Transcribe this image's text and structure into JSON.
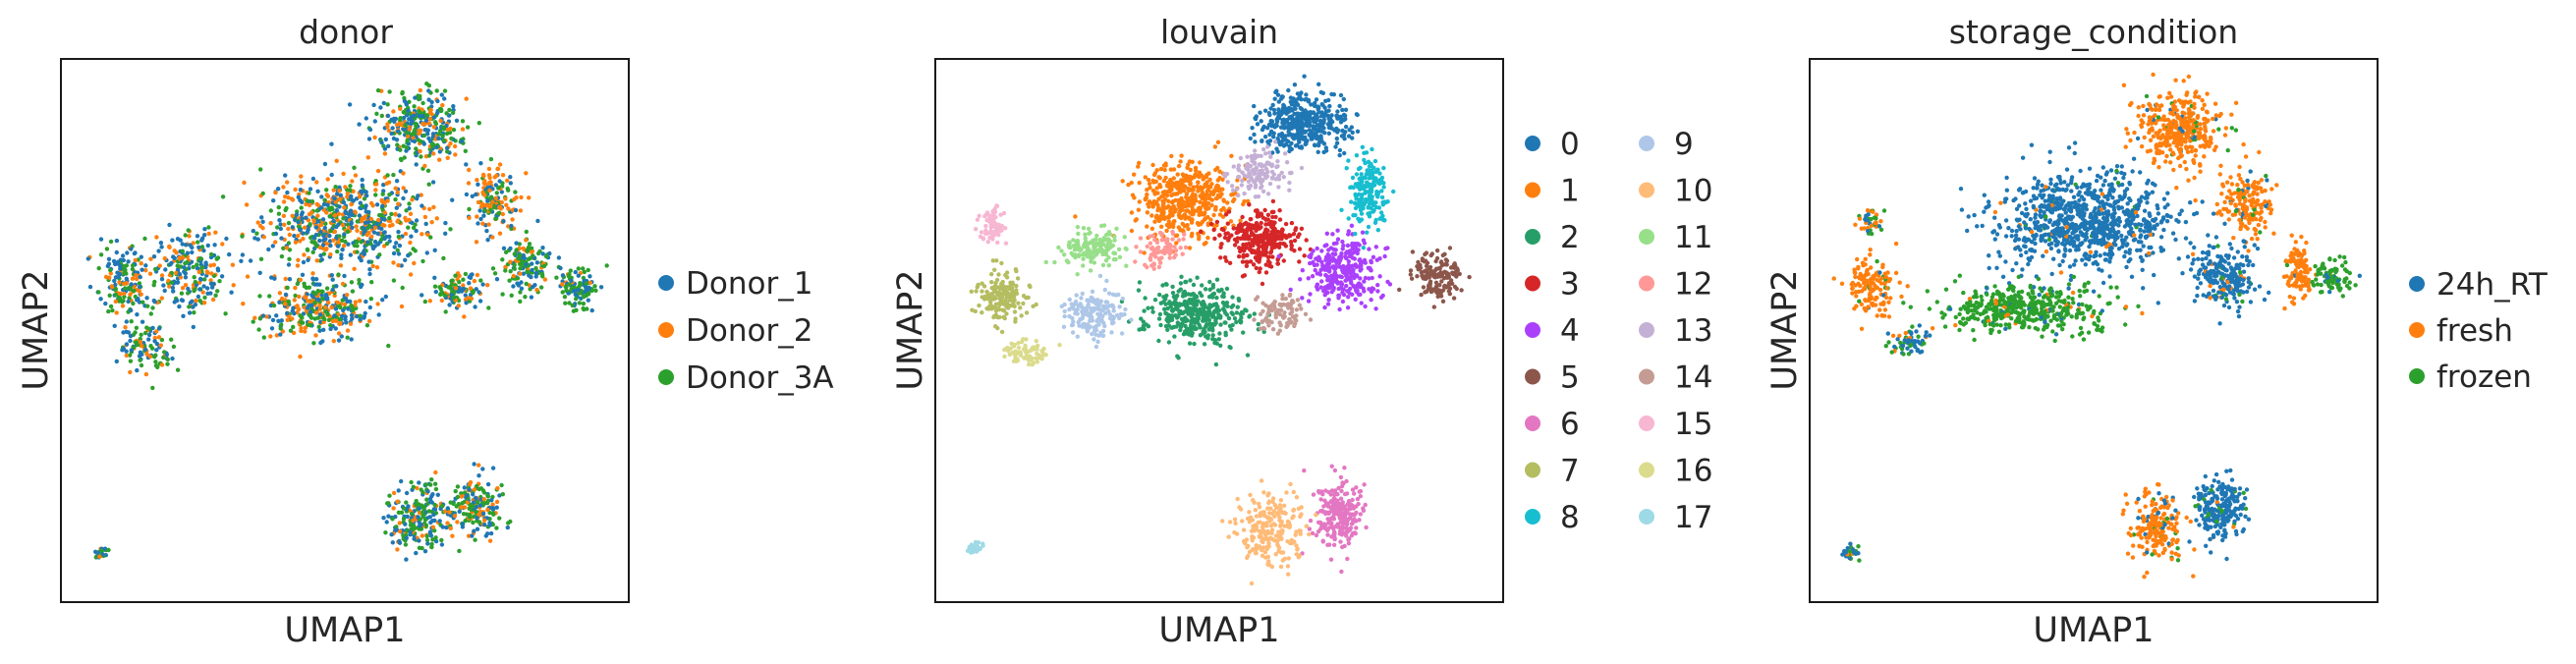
{
  "chart_data": [
    {
      "type": "scatter",
      "title": "donor",
      "xlabel": "UMAP1",
      "ylabel": "UMAP2",
      "grid": false,
      "legend_position": "right",
      "categories": [
        "Donor_1",
        "Donor_2",
        "Donor_3A"
      ],
      "colors": [
        "#1f77b4",
        "#ff7f0e",
        "#2ca02c"
      ],
      "xlim": [
        0,
        100
      ],
      "ylim": [
        0,
        100
      ],
      "clusters": [
        {
          "x": 63,
          "y": 87,
          "sx": 7,
          "sy": 6,
          "n": 320,
          "mix": [
            0.4,
            0.2,
            0.4
          ]
        },
        {
          "x": 50,
          "y": 70,
          "sx": 13,
          "sy": 8,
          "n": 650,
          "mix": [
            0.4,
            0.35,
            0.25
          ]
        },
        {
          "x": 23,
          "y": 61,
          "sx": 7,
          "sy": 7,
          "n": 220,
          "mix": [
            0.45,
            0.25,
            0.3
          ]
        },
        {
          "x": 11,
          "y": 59,
          "sx": 4,
          "sy": 6,
          "n": 160,
          "mix": [
            0.4,
            0.2,
            0.4
          ]
        },
        {
          "x": 45,
          "y": 54,
          "sx": 9,
          "sy": 5,
          "n": 320,
          "mix": [
            0.35,
            0.35,
            0.3
          ]
        },
        {
          "x": 82,
          "y": 62,
          "sx": 4,
          "sy": 5,
          "n": 140,
          "mix": [
            0.3,
            0.15,
            0.55
          ]
        },
        {
          "x": 91,
          "y": 58,
          "sx": 3,
          "sy": 3,
          "n": 110,
          "mix": [
            0.25,
            0.1,
            0.65
          ]
        },
        {
          "x": 76,
          "y": 74,
          "sx": 4,
          "sy": 6,
          "n": 160,
          "mix": [
            0.3,
            0.4,
            0.3
          ]
        },
        {
          "x": 70,
          "y": 57,
          "sx": 4,
          "sy": 3,
          "n": 110,
          "mix": [
            0.35,
            0.2,
            0.45
          ]
        },
        {
          "x": 15,
          "y": 47,
          "sx": 5,
          "sy": 4,
          "n": 100,
          "mix": [
            0.4,
            0.3,
            0.3
          ]
        },
        {
          "x": 63,
          "y": 15,
          "sx": 5,
          "sy": 6,
          "n": 220,
          "mix": [
            0.4,
            0.2,
            0.4
          ]
        },
        {
          "x": 73,
          "y": 17,
          "sx": 4,
          "sy": 5,
          "n": 180,
          "mix": [
            0.35,
            0.25,
            0.4
          ]
        },
        {
          "x": 7,
          "y": 9,
          "sx": 1.2,
          "sy": 1,
          "n": 30,
          "mix": [
            0.5,
            0.2,
            0.3
          ]
        }
      ]
    },
    {
      "type": "scatter",
      "title": "louvain",
      "xlabel": "UMAP1",
      "ylabel": "UMAP2",
      "grid": false,
      "legend_position": "right",
      "legend_columns": 2,
      "categories": [
        "0",
        "1",
        "2",
        "3",
        "4",
        "5",
        "6",
        "7",
        "8",
        "9",
        "10",
        "11",
        "12",
        "13",
        "14",
        "15",
        "16",
        "17"
      ],
      "colors": [
        "#1f77b4",
        "#ff7f0e",
        "#279e68",
        "#d62728",
        "#aa40fc",
        "#8c564b",
        "#e377c2",
        "#b5bd61",
        "#17becf",
        "#aec7e8",
        "#ffbb78",
        "#98df8a",
        "#ff9896",
        "#c5b0d5",
        "#c49c94",
        "#f7b6d2",
        "#dbdb8d",
        "#9edae5"
      ],
      "xlim": [
        0,
        100
      ],
      "ylim": [
        0,
        100
      ],
      "clusters": [
        {
          "id": 0,
          "x": 65,
          "y": 88,
          "sx": 7,
          "sy": 5,
          "n": 420
        },
        {
          "id": 1,
          "x": 44,
          "y": 74,
          "sx": 8,
          "sy": 6,
          "n": 460
        },
        {
          "id": 2,
          "x": 46,
          "y": 53,
          "sx": 8,
          "sy": 5,
          "n": 380
        },
        {
          "id": 3,
          "x": 57,
          "y": 67,
          "sx": 6,
          "sy": 5,
          "n": 330
        },
        {
          "id": 4,
          "x": 72,
          "y": 61,
          "sx": 6,
          "sy": 6,
          "n": 300
        },
        {
          "id": 5,
          "x": 88,
          "y": 60,
          "sx": 4,
          "sy": 4,
          "n": 150
        },
        {
          "id": 6,
          "x": 71,
          "y": 16,
          "sx": 4,
          "sy": 6,
          "n": 230
        },
        {
          "id": 7,
          "x": 12,
          "y": 56,
          "sx": 4,
          "sy": 4,
          "n": 160
        },
        {
          "id": 8,
          "x": 76,
          "y": 75,
          "sx": 3,
          "sy": 6,
          "n": 180
        },
        {
          "id": 9,
          "x": 28,
          "y": 53,
          "sx": 5,
          "sy": 4,
          "n": 170
        },
        {
          "id": 10,
          "x": 59,
          "y": 13,
          "sx": 5,
          "sy": 6,
          "n": 220
        },
        {
          "id": 11,
          "x": 28,
          "y": 65,
          "sx": 5,
          "sy": 3,
          "n": 150
        },
        {
          "id": 12,
          "x": 40,
          "y": 65,
          "sx": 4,
          "sy": 3,
          "n": 80
        },
        {
          "id": 13,
          "x": 57,
          "y": 79,
          "sx": 5,
          "sy": 4,
          "n": 140
        },
        {
          "id": 14,
          "x": 61,
          "y": 53,
          "sx": 4,
          "sy": 3,
          "n": 90
        },
        {
          "id": 15,
          "x": 10,
          "y": 69,
          "sx": 2,
          "sy": 3,
          "n": 70
        },
        {
          "id": 16,
          "x": 16,
          "y": 46,
          "sx": 3,
          "sy": 2,
          "n": 70
        },
        {
          "id": 17,
          "x": 7,
          "y": 10,
          "sx": 1.2,
          "sy": 1,
          "n": 30
        }
      ]
    },
    {
      "type": "scatter",
      "title": "storage_condition",
      "xlabel": "UMAP1",
      "ylabel": "UMAP2",
      "grid": false,
      "legend_position": "right",
      "categories": [
        "24h_RT",
        "fresh",
        "frozen"
      ],
      "colors": [
        "#1f77b4",
        "#ff7f0e",
        "#2ca02c"
      ],
      "xlim": [
        0,
        100
      ],
      "ylim": [
        0,
        100
      ],
      "clusters": [
        {
          "x": 65,
          "y": 87,
          "sx": 7,
          "sy": 6,
          "n": 380,
          "mix": [
            0.05,
            0.9,
            0.05
          ]
        },
        {
          "x": 77,
          "y": 73,
          "sx": 4,
          "sy": 6,
          "n": 170,
          "mix": [
            0.1,
            0.85,
            0.05
          ]
        },
        {
          "x": 48,
          "y": 70,
          "sx": 14,
          "sy": 8,
          "n": 900,
          "mix": [
            0.95,
            0.03,
            0.02
          ]
        },
        {
          "x": 73,
          "y": 60,
          "sx": 5,
          "sy": 5,
          "n": 220,
          "mix": [
            0.9,
            0.05,
            0.05
          ]
        },
        {
          "x": 38,
          "y": 54,
          "sx": 13,
          "sy": 4,
          "n": 460,
          "mix": [
            0.05,
            0.05,
            0.9
          ]
        },
        {
          "x": 86,
          "y": 61,
          "sx": 2,
          "sy": 5,
          "n": 110,
          "mix": [
            0.05,
            0.9,
            0.05
          ]
        },
        {
          "x": 92,
          "y": 60,
          "sx": 3,
          "sy": 3,
          "n": 90,
          "mix": [
            0.05,
            0.05,
            0.9
          ]
        },
        {
          "x": 11,
          "y": 58,
          "sx": 4,
          "sy": 5,
          "n": 140,
          "mix": [
            0.05,
            0.9,
            0.05
          ]
        },
        {
          "x": 11,
          "y": 70,
          "sx": 2,
          "sy": 2,
          "n": 40,
          "mix": [
            0.3,
            0.3,
            0.4
          ]
        },
        {
          "x": 17,
          "y": 48,
          "sx": 4,
          "sy": 2,
          "n": 60,
          "mix": [
            0.6,
            0.1,
            0.3
          ]
        },
        {
          "x": 72,
          "y": 17,
          "sx": 4,
          "sy": 5,
          "n": 220,
          "mix": [
            0.9,
            0.05,
            0.05
          ]
        },
        {
          "x": 61,
          "y": 14,
          "sx": 4,
          "sy": 6,
          "n": 200,
          "mix": [
            0.1,
            0.85,
            0.05
          ]
        },
        {
          "x": 7,
          "y": 9,
          "sx": 1.2,
          "sy": 1,
          "n": 30,
          "mix": [
            0.3,
            0.1,
            0.6
          ]
        }
      ]
    }
  ]
}
